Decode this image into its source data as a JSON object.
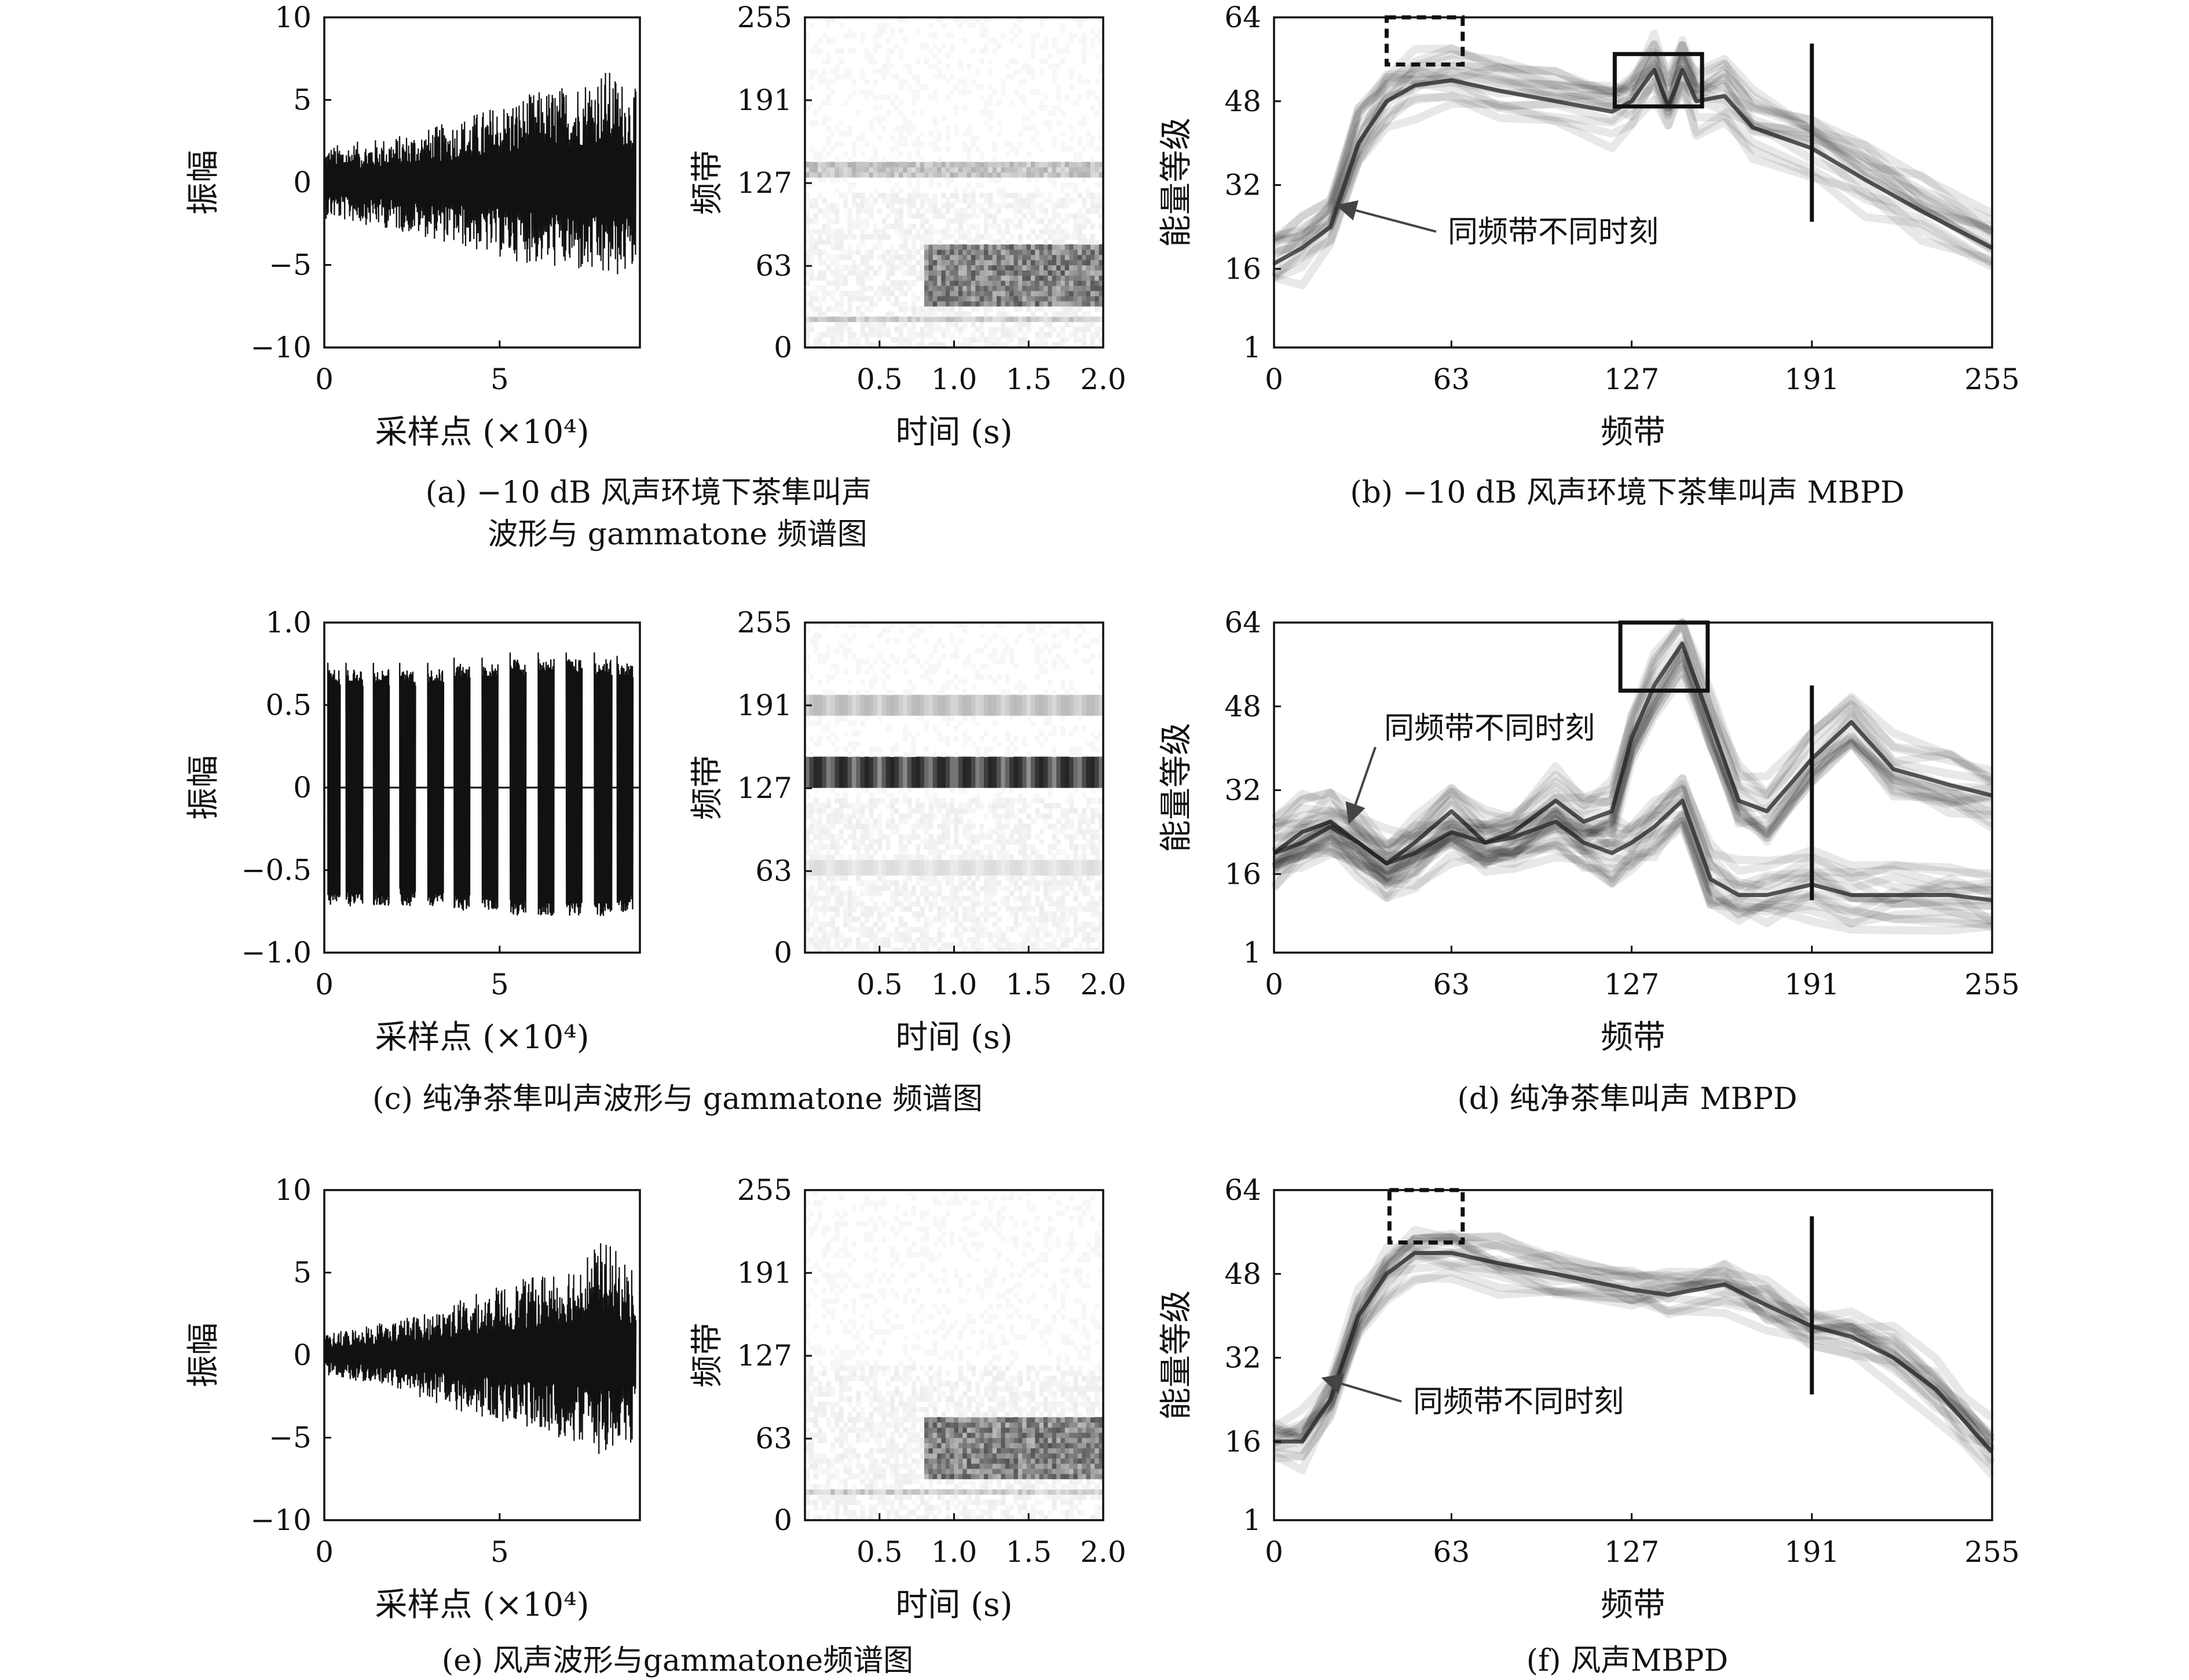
{
  "panels": [
    {
      "type": "waveform",
      "title": "",
      "xlabel": "采样点 (×10⁴)",
      "ylabel": "振幅",
      "xticks": [
        "0",
        "5"
      ],
      "yticks": [
        "10",
        "5",
        "0",
        "−5",
        "−10"
      ],
      "xlim": [
        0,
        9
      ],
      "ylim": [
        -10,
        10
      ]
    },
    {
      "type": "spectrogram",
      "xlabel": "时间 (s)",
      "ylabel": "频带",
      "xticks": [
        "0.5",
        "1.0",
        "1.5",
        "2.0"
      ],
      "yticks": [
        "255",
        "191",
        "127",
        "63",
        "0"
      ],
      "xlim": [
        0,
        2.0
      ],
      "ylim": [
        0,
        255
      ]
    },
    {
      "type": "mbpd",
      "xlabel": "频带",
      "ylabel": "能量等级",
      "xticks": [
        "0",
        "63",
        "127",
        "191",
        "255"
      ],
      "yticks": [
        "64",
        "48",
        "32",
        "16",
        "1"
      ],
      "annotation": "同频带不同时刻"
    },
    {
      "type": "waveform",
      "xlabel": "采样点 (×10⁴)",
      "ylabel": "振幅",
      "xticks": [
        "0",
        "5"
      ],
      "yticks": [
        "1.0",
        "0.5",
        "0",
        "−0.5",
        "−1.0"
      ],
      "xlim": [
        0,
        9
      ],
      "ylim": [
        -1,
        1
      ]
    },
    {
      "type": "spectrogram",
      "xlabel": "时间 (s)",
      "ylabel": "频带",
      "xticks": [
        "0.5",
        "1.0",
        "1.5",
        "2.0"
      ],
      "yticks": [
        "255",
        "191",
        "127",
        "63",
        "0"
      ],
      "xlim": [
        0,
        2.0
      ],
      "ylim": [
        0,
        255
      ]
    },
    {
      "type": "mbpd",
      "xlabel": "频带",
      "ylabel": "能量等级",
      "xticks": [
        "0",
        "63",
        "127",
        "191",
        "255"
      ],
      "yticks": [
        "64",
        "48",
        "32",
        "16",
        "1"
      ],
      "annotation": "同频带不同时刻"
    },
    {
      "type": "waveform",
      "xlabel": "采样点 (×10⁴)",
      "ylabel": "振幅",
      "xticks": [
        "0",
        "5"
      ],
      "yticks": [
        "10",
        "5",
        "0",
        "−5",
        "−10"
      ],
      "xlim": [
        0,
        9
      ],
      "ylim": [
        -10,
        10
      ]
    },
    {
      "type": "spectrogram",
      "xlabel": "时间 (s)",
      "ylabel": "频带",
      "xticks": [
        "0.5",
        "1.0",
        "1.5",
        "2.0"
      ],
      "yticks": [
        "255",
        "191",
        "127",
        "63",
        "0"
      ],
      "xlim": [
        0,
        2.0
      ],
      "ylim": [
        0,
        255
      ]
    },
    {
      "type": "mbpd",
      "xlabel": "频带",
      "ylabel": "能量等级",
      "xticks": [
        "0",
        "63",
        "127",
        "191",
        "255"
      ],
      "yticks": [
        "64",
        "48",
        "32",
        "16",
        "1"
      ],
      "annotation": "同频带不同时刻"
    }
  ],
  "captions": {
    "a_line1": "(a) −10 dB 风声环境下茶隼叫声",
    "a_line2": "波形与 gammatone 频谱图",
    "b": "(b) −10 dB 风声环境下茶隼叫声 MBPD",
    "c": "(c) 纯净茶隼叫声波形与 gammatone 频谱图",
    "d": "(d) 纯净茶隼叫声 MBPD",
    "e": "(e) 风声波形与gammatone频谱图",
    "f": "(f) 风声MBPD"
  },
  "chart_data": [
    {
      "type": "line",
      "title": "(a) −10 dB 风声环境下茶隼叫声 waveform",
      "xlabel": "采样点 (×10⁴)",
      "ylabel": "振幅",
      "xlim": [
        0,
        9
      ],
      "ylim": [
        -10,
        10
      ],
      "series": [
        {
          "x": [
            0,
            1,
            2,
            3,
            4,
            5,
            6,
            7,
            8,
            9
          ],
          "upper_envelope": [
            2.2,
            2.5,
            2.8,
            3.3,
            4.0,
            4.8,
            5.5,
            6.0,
            7.0,
            5.5
          ],
          "lower_envelope": [
            -2.2,
            -2.5,
            -2.9,
            -3.4,
            -4.0,
            -4.6,
            -5.0,
            -5.4,
            -6.0,
            -5.5
          ]
        }
      ]
    },
    {
      "type": "heatmap",
      "title": "(a) gammatone spectrogram",
      "xlabel": "时间 (s)",
      "ylabel": "频带",
      "xlim": [
        0,
        2.0
      ],
      "ylim": [
        0,
        255
      ],
      "features": [
        {
          "band_range": [
            30,
            80
          ],
          "time_range": [
            0.8,
            2.0
          ],
          "intensity": 0.75
        },
        {
          "band_range": [
            130,
            145
          ],
          "time_range": [
            0.0,
            2.0
          ],
          "intensity": 0.35
        },
        {
          "band_range": [
            20,
            25
          ],
          "time_range": [
            0.0,
            2.0
          ],
          "intensity": 0.3
        }
      ]
    },
    {
      "type": "line",
      "title": "(b) −10 dB 风声环境下茶隼叫声 MBPD",
      "xlabel": "频带",
      "ylabel": "能量等级",
      "xlim": [
        0,
        255
      ],
      "ylim": [
        1,
        64
      ],
      "x": [
        0,
        10,
        20,
        30,
        40,
        50,
        63,
        80,
        100,
        120,
        127,
        135,
        140,
        145,
        150,
        160,
        170,
        191,
        210,
        230,
        255
      ],
      "series": [
        {
          "y": [
            17,
            20,
            24,
            40,
            48,
            51,
            52,
            50,
            48,
            46,
            48,
            54,
            47,
            54,
            48,
            49,
            43,
            39,
            33,
            27,
            20
          ]
        }
      ],
      "marker_band": 191,
      "annotation": "同频带不同时刻"
    },
    {
      "type": "line",
      "title": "(c) 纯净茶隼叫声 waveform",
      "xlabel": "采样点 (×10⁴)",
      "ylabel": "振幅",
      "xlim": [
        0,
        9
      ],
      "ylim": [
        -1,
        1
      ],
      "bursts": [
        {
          "start": 0.1,
          "end": 0.45,
          "peak": 0.72
        },
        {
          "start": 0.62,
          "end": 1.1,
          "peak": 0.72
        },
        {
          "start": 1.4,
          "end": 1.85,
          "peak": 0.72
        },
        {
          "start": 2.15,
          "end": 2.6,
          "peak": 0.72
        },
        {
          "start": 2.95,
          "end": 3.4,
          "peak": 0.72
        },
        {
          "start": 3.7,
          "end": 4.15,
          "peak": 0.75
        },
        {
          "start": 4.5,
          "end": 4.95,
          "peak": 0.75
        },
        {
          "start": 5.3,
          "end": 5.75,
          "peak": 0.78
        },
        {
          "start": 6.1,
          "end": 6.55,
          "peak": 0.78
        },
        {
          "start": 6.9,
          "end": 7.35,
          "peak": 0.78
        },
        {
          "start": 7.7,
          "end": 8.2,
          "peak": 0.78
        },
        {
          "start": 8.35,
          "end": 8.8,
          "peak": 0.76
        }
      ]
    },
    {
      "type": "heatmap",
      "title": "(c) gammatone spectrogram",
      "xlabel": "时间 (s)",
      "ylabel": "频带",
      "xlim": [
        0,
        2.0
      ],
      "ylim": [
        0,
        255
      ],
      "features": [
        {
          "band_range": [
            128,
            150
          ],
          "time_range": [
            0.0,
            2.0
          ],
          "intensity": 0.95,
          "pattern": "periodic"
        },
        {
          "band_range": [
            185,
            200
          ],
          "time_range": [
            0.0,
            2.0
          ],
          "intensity": 0.3,
          "pattern": "periodic"
        },
        {
          "band_range": [
            60,
            70
          ],
          "time_range": [
            0.0,
            2.0
          ],
          "intensity": 0.15,
          "pattern": "periodic"
        }
      ]
    },
    {
      "type": "line",
      "title": "(d) 纯净茶隼叫声 MBPD",
      "xlabel": "频带",
      "ylabel": "能量等级",
      "xlim": [
        0,
        255
      ],
      "ylim": [
        1,
        64
      ],
      "x": [
        0,
        10,
        20,
        30,
        40,
        50,
        63,
        75,
        85,
        100,
        110,
        120,
        127,
        135,
        145,
        155,
        165,
        175,
        191,
        205,
        220,
        240,
        255
      ],
      "series": [
        {
          "y": [
            20,
            24,
            26,
            22,
            18,
            22,
            28,
            22,
            24,
            30,
            26,
            28,
            42,
            52,
            60,
            45,
            30,
            28,
            38,
            45,
            36,
            33,
            31
          ]
        },
        {
          "y": [
            20,
            22,
            25,
            22,
            18,
            20,
            24,
            22,
            23,
            26,
            22,
            20,
            22,
            25,
            30,
            15,
            12,
            12,
            14,
            12,
            12,
            12,
            11
          ]
        }
      ],
      "marker_band": 191,
      "annotation": "同频带不同时刻"
    },
    {
      "type": "line",
      "title": "(e) 风声 waveform",
      "xlabel": "采样点 (×10⁴)",
      "ylabel": "振幅",
      "xlim": [
        0,
        9
      ],
      "ylim": [
        -10,
        10
      ],
      "series": [
        {
          "x": [
            0,
            1,
            2,
            3,
            4,
            5,
            6,
            7,
            8,
            9
          ],
          "upper_envelope": [
            1.2,
            1.8,
            2.2,
            2.6,
            3.5,
            4.2,
            4.8,
            5.8,
            7.0,
            5.0
          ],
          "lower_envelope": [
            -1.2,
            -1.6,
            -2.0,
            -2.8,
            -3.5,
            -4.0,
            -4.6,
            -5.2,
            -6.2,
            -5.0
          ]
        }
      ]
    },
    {
      "type": "heatmap",
      "title": "(e) gammatone spectrogram",
      "xlabel": "时间 (s)",
      "ylabel": "频带",
      "xlim": [
        0,
        2.0
      ],
      "ylim": [
        0,
        255
      ],
      "features": [
        {
          "band_range": [
            30,
            80
          ],
          "time_range": [
            0.8,
            2.0
          ],
          "intensity": 0.75
        },
        {
          "band_range": [
            20,
            25
          ],
          "time_range": [
            0.0,
            2.0
          ],
          "intensity": 0.3
        }
      ]
    },
    {
      "type": "line",
      "title": "(f) 风声MBPD",
      "xlabel": "频带",
      "ylabel": "能量等级",
      "xlim": [
        0,
        255
      ],
      "ylim": [
        1,
        64
      ],
      "x": [
        0,
        10,
        20,
        30,
        40,
        50,
        63,
        80,
        100,
        127,
        140,
        160,
        175,
        191,
        205,
        220,
        235,
        245,
        255
      ],
      "series": [
        {
          "y": [
            16,
            16,
            24,
            40,
            48,
            52,
            52,
            50,
            48,
            45,
            44,
            46,
            42,
            38,
            36,
            32,
            26,
            20,
            14
          ]
        }
      ],
      "marker_band": 191,
      "annotation": "同频带不同时刻"
    }
  ]
}
